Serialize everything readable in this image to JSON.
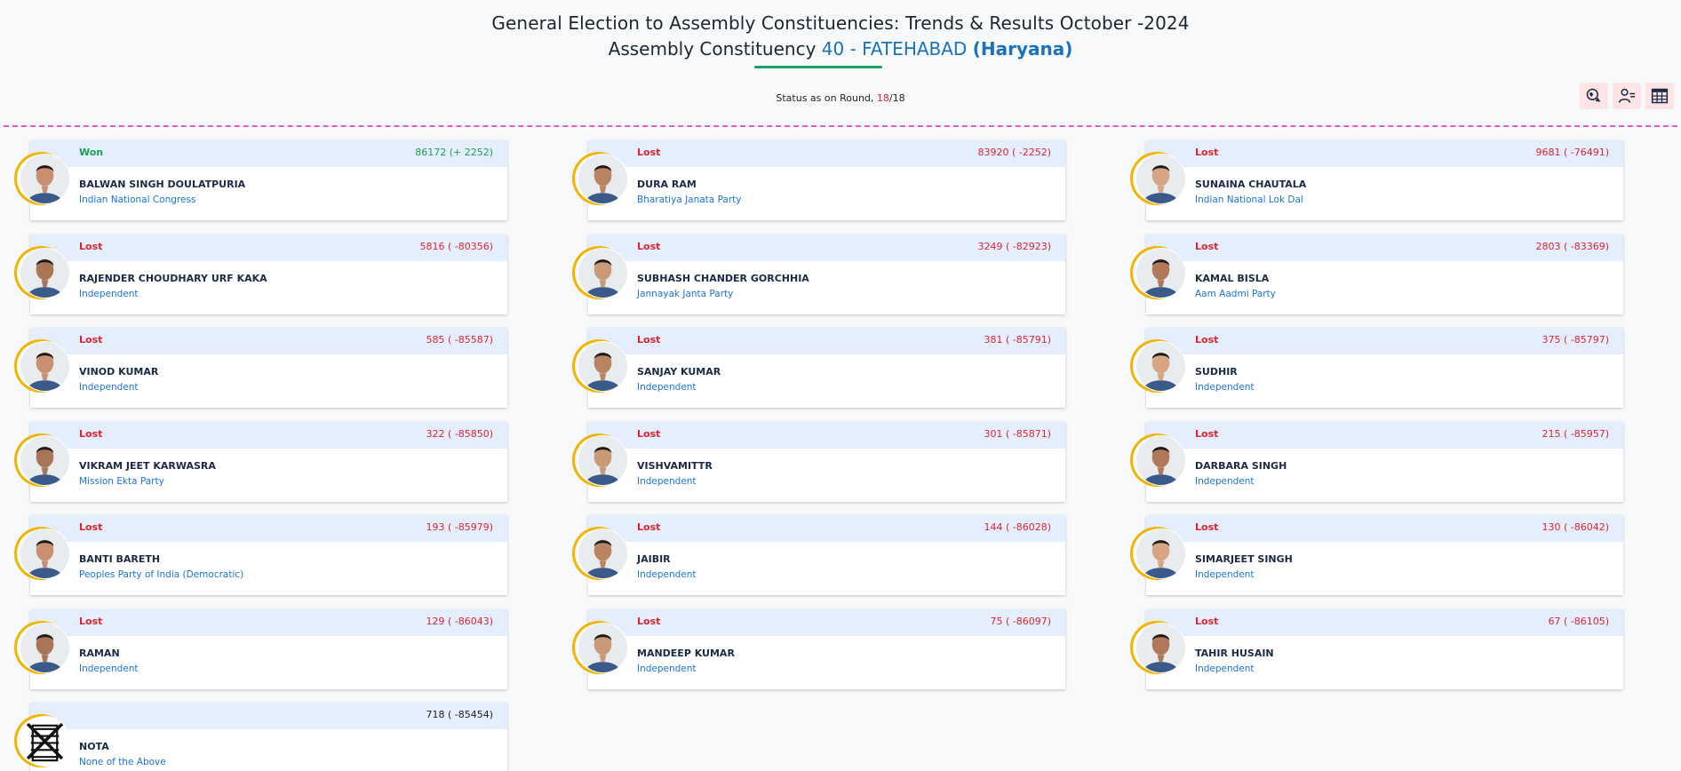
{
  "header": {
    "title_line1": "General Election to Assembly Constituencies: Trends & Results October -2024",
    "title_prefix": "Assembly Constituency ",
    "ac_number_name": "40 - FATEHABAD",
    "state": "(Haryana)"
  },
  "status": {
    "label": "Status as on Round, ",
    "round_current": "18",
    "separator": "/",
    "round_total": "18"
  },
  "toolbar": {
    "icons": [
      "map-globe-icon",
      "candidate-list-icon",
      "table-grid-icon"
    ]
  },
  "colors": {
    "won": "#1f9d4c",
    "lost": "#e0242f",
    "party": "#1a73d8",
    "ring": "#f2b400",
    "card_top": "#e4eefc",
    "divider": "#e05ac8"
  },
  "candidates": [
    {
      "status": "Won",
      "votes": "86172 (+ 2252)",
      "name": "BALWAN SINGH DOULATPURIA",
      "party": "Indian National Congress",
      "result": "won"
    },
    {
      "status": "Lost",
      "votes": "83920 ( -2252)",
      "name": "DURA RAM",
      "party": "Bharatiya Janata Party",
      "result": "lost"
    },
    {
      "status": "Lost",
      "votes": "9681 ( -76491)",
      "name": "SUNAINA CHAUTALA",
      "party": "Indian National Lok Dal",
      "result": "lost"
    },
    {
      "status": "Lost",
      "votes": "5816 ( -80356)",
      "name": "RAJENDER CHOUDHARY URF KAKA",
      "party": "Independent",
      "result": "lost"
    },
    {
      "status": "Lost",
      "votes": "3249 ( -82923)",
      "name": "SUBHASH CHANDER GORCHHIA",
      "party": "Jannayak Janta Party",
      "result": "lost"
    },
    {
      "status": "Lost",
      "votes": "2803 ( -83369)",
      "name": "KAMAL BISLA",
      "party": "Aam Aadmi Party",
      "result": "lost"
    },
    {
      "status": "Lost",
      "votes": "585 ( -85587)",
      "name": "VINOD KUMAR",
      "party": "Independent",
      "result": "lost"
    },
    {
      "status": "Lost",
      "votes": "381 ( -85791)",
      "name": "SANJAY KUMAR",
      "party": "Independent",
      "result": "lost"
    },
    {
      "status": "Lost",
      "votes": "375 ( -85797)",
      "name": "SUDHIR",
      "party": "Independent",
      "result": "lost"
    },
    {
      "status": "Lost",
      "votes": "322 ( -85850)",
      "name": "VIKRAM JEET KARWASRA",
      "party": "Mission Ekta Party",
      "result": "lost"
    },
    {
      "status": "Lost",
      "votes": "301 ( -85871)",
      "name": "VISHVAMITTR",
      "party": "Independent",
      "result": "lost"
    },
    {
      "status": "Lost",
      "votes": "215 ( -85957)",
      "name": "DARBARA SINGH",
      "party": "Independent",
      "result": "lost"
    },
    {
      "status": "Lost",
      "votes": "193 ( -85979)",
      "name": "BANTI BARETH",
      "party": "Peoples Party of India (Democratic)",
      "result": "lost"
    },
    {
      "status": "Lost",
      "votes": "144 ( -86028)",
      "name": "JAIBIR",
      "party": "Independent",
      "result": "lost"
    },
    {
      "status": "Lost",
      "votes": "130 ( -86042)",
      "name": "SIMARJEET SINGH",
      "party": "Independent",
      "result": "lost"
    },
    {
      "status": "Lost",
      "votes": "129 ( -86043)",
      "name": "RAMAN",
      "party": "Independent",
      "result": "lost"
    },
    {
      "status": "Lost",
      "votes": "75 ( -86097)",
      "name": "MANDEEP KUMAR",
      "party": "Independent",
      "result": "lost"
    },
    {
      "status": "Lost",
      "votes": "67 ( -86105)",
      "name": "TAHIR HUSAIN",
      "party": "Independent",
      "result": "lost"
    },
    {
      "status": "",
      "votes": "718 ( -85454)",
      "name": "NOTA",
      "party": "None of the Above",
      "result": "neutral"
    }
  ]
}
